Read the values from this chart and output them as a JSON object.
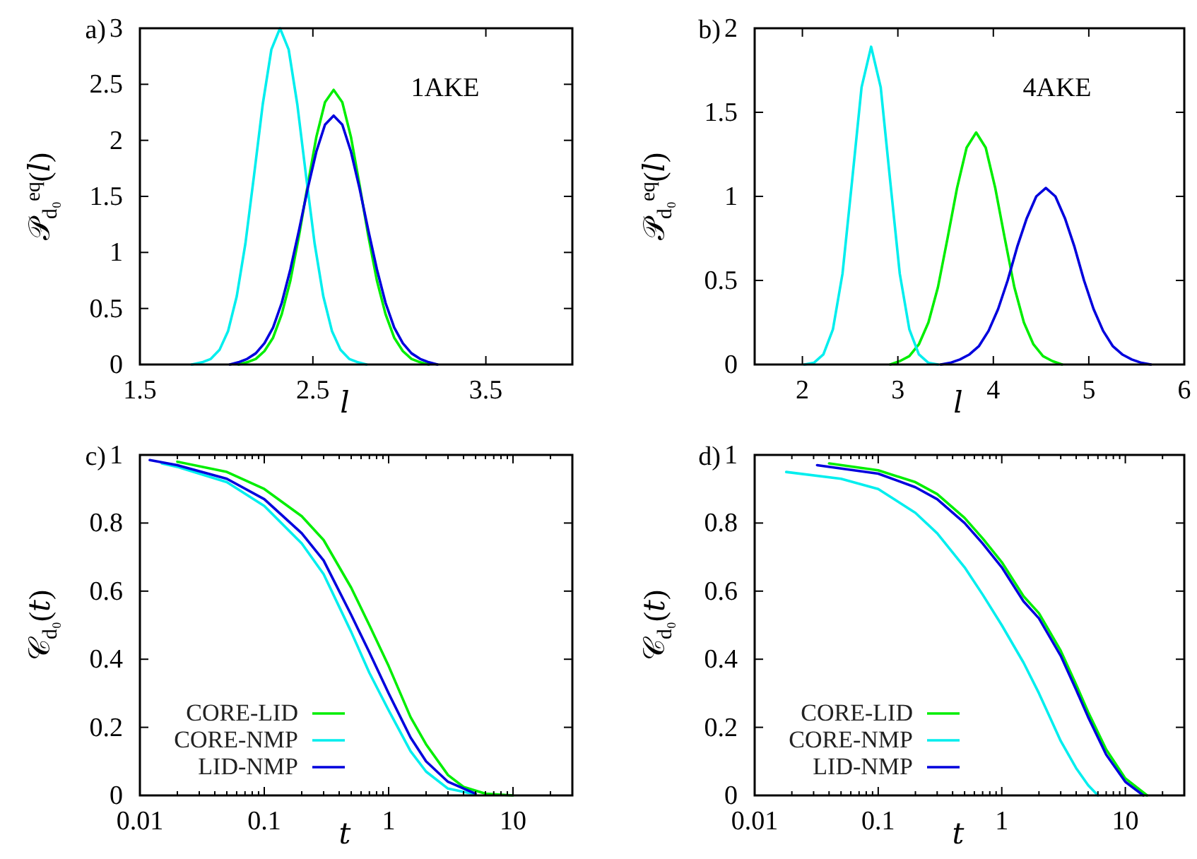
{
  "chart_data": [
    {
      "type": "line",
      "title": "a)",
      "xlabel": "𝑙",
      "ylabel": "𝒫$_{d₀}$$^{eq}$(𝑙)",
      "xlim": [
        1.5,
        4
      ],
      "xticks": [
        1.5,
        2.5,
        3.5
      ],
      "ylim": [
        0,
        3
      ],
      "yticks": [
        0,
        0.5,
        1,
        1.5,
        2,
        2.5,
        3
      ],
      "annotations": [
        "1AKE"
      ],
      "series": [
        {
          "color": "#00ee00",
          "x": [
            2.07,
            2.12,
            2.17,
            2.22,
            2.27,
            2.32,
            2.37,
            2.42,
            2.47,
            2.52,
            2.57,
            2.62,
            2.67,
            2.72,
            2.77,
            2.82,
            2.87,
            2.92,
            2.97,
            3.02,
            3.07,
            3.12,
            3.17
          ],
          "values": [
            0,
            0.02,
            0.05,
            0.12,
            0.24,
            0.45,
            0.75,
            1.15,
            1.6,
            2.03,
            2.34,
            2.45,
            2.34,
            2.03,
            1.6,
            1.15,
            0.75,
            0.45,
            0.24,
            0.12,
            0.05,
            0.02,
            0
          ]
        },
        {
          "color": "#00eeee",
          "x": [
            1.8,
            1.86,
            1.91,
            1.96,
            2.01,
            2.06,
            2.11,
            2.16,
            2.21,
            2.26,
            2.31,
            2.36,
            2.41,
            2.46,
            2.51,
            2.56,
            2.61,
            2.66,
            2.71,
            2.76,
            2.81
          ],
          "values": [
            0,
            0.02,
            0.05,
            0.13,
            0.3,
            0.61,
            1.08,
            1.69,
            2.32,
            2.81,
            3,
            2.81,
            2.32,
            1.69,
            1.08,
            0.61,
            0.3,
            0.13,
            0.05,
            0.02,
            0
          ]
        },
        {
          "color": "#0000dd",
          "x": [
            2.02,
            2.07,
            2.12,
            2.17,
            2.22,
            2.27,
            2.32,
            2.37,
            2.42,
            2.47,
            2.52,
            2.57,
            2.62,
            2.67,
            2.72,
            2.77,
            2.82,
            2.87,
            2.92,
            2.97,
            3.02,
            3.07,
            3.12,
            3.17,
            3.22
          ],
          "values": [
            0,
            0.02,
            0.05,
            0.1,
            0.19,
            0.33,
            0.55,
            0.85,
            1.2,
            1.57,
            1.9,
            2.14,
            2.22,
            2.14,
            1.9,
            1.57,
            1.2,
            0.85,
            0.55,
            0.33,
            0.19,
            0.1,
            0.05,
            0.02,
            0
          ]
        }
      ]
    },
    {
      "type": "line",
      "title": "b)",
      "xlabel": "𝑙",
      "ylabel": "𝒫$_{d₀}$$^{eq}$(𝑙)",
      "xlim": [
        1.5,
        6
      ],
      "xticks": [
        2,
        3,
        4,
        5,
        6
      ],
      "ylim": [
        0,
        2
      ],
      "yticks": [
        0,
        0.5,
        1,
        1.5,
        2
      ],
      "annotations": [
        "4AKE"
      ],
      "series": [
        {
          "color": "#00ee00",
          "x": [
            2.92,
            3.02,
            3.12,
            3.22,
            3.32,
            3.42,
            3.52,
            3.62,
            3.72,
            3.82,
            3.92,
            4.02,
            4.12,
            4.22,
            4.32,
            4.42,
            4.52,
            4.62,
            4.72
          ],
          "values": [
            0,
            0.02,
            0.05,
            0.12,
            0.25,
            0.46,
            0.75,
            1.05,
            1.29,
            1.38,
            1.29,
            1.05,
            0.75,
            0.46,
            0.25,
            0.12,
            0.05,
            0.02,
            0
          ]
        },
        {
          "color": "#00eeee",
          "x": [
            2.02,
            2.12,
            2.22,
            2.32,
            2.42,
            2.52,
            2.62,
            2.72,
            2.82,
            2.92,
            3.02,
            3.12,
            3.22,
            3.32,
            3.42
          ],
          "values": [
            0,
            0.01,
            0.06,
            0.21,
            0.54,
            1.09,
            1.65,
            1.89,
            1.65,
            1.09,
            0.54,
            0.21,
            0.06,
            0.01,
            0
          ]
        },
        {
          "color": "#0000dd",
          "x": [
            3.45,
            3.55,
            3.65,
            3.75,
            3.85,
            3.95,
            4.05,
            4.15,
            4.25,
            4.35,
            4.45,
            4.55,
            4.65,
            4.75,
            4.85,
            4.95,
            5.05,
            5.15,
            5.25,
            5.35,
            5.45,
            5.55,
            5.65
          ],
          "values": [
            0,
            0.01,
            0.03,
            0.06,
            0.11,
            0.2,
            0.33,
            0.5,
            0.7,
            0.87,
            1,
            1.05,
            1,
            0.87,
            0.7,
            0.5,
            0.33,
            0.2,
            0.11,
            0.06,
            0.03,
            0.01,
            0
          ]
        }
      ]
    },
    {
      "type": "line",
      "title": "c)",
      "xlabel": "𝑡",
      "ylabel": "𝒞$_{d₀}$(𝑡)",
      "log": "x",
      "xlim": [
        0.01,
        30
      ],
      "xticks": [
        0.01,
        0.1,
        1,
        10
      ],
      "ylim": [
        0,
        1
      ],
      "yticks": [
        0,
        0.2,
        0.4,
        0.6,
        0.8,
        1
      ],
      "legend": "bottom left",
      "series": [
        {
          "name": "CORE-LID",
          "color": "#00ee00",
          "x": [
            0.02,
            0.05,
            0.1,
            0.2,
            0.3,
            0.5,
            0.7,
            1,
            1.5,
            2,
            3,
            4,
            6,
            10
          ],
          "values": [
            0.98,
            0.95,
            0.9,
            0.82,
            0.75,
            0.61,
            0.5,
            0.38,
            0.23,
            0.15,
            0.06,
            0.025,
            0.005,
            0
          ]
        },
        {
          "name": "CORE-NMP",
          "color": "#00eeee",
          "x": [
            0.015,
            0.02,
            0.05,
            0.1,
            0.2,
            0.3,
            0.5,
            0.7,
            1,
            1.5,
            2,
            3,
            5
          ],
          "values": [
            0.975,
            0.965,
            0.92,
            0.85,
            0.74,
            0.65,
            0.48,
            0.36,
            0.25,
            0.13,
            0.07,
            0.02,
            0.003
          ]
        },
        {
          "name": "LID-NMP",
          "color": "#0000dd",
          "x": [
            0.012,
            0.02,
            0.05,
            0.1,
            0.2,
            0.3,
            0.5,
            0.7,
            1,
            1.5,
            2,
            3,
            5
          ],
          "values": [
            0.985,
            0.97,
            0.93,
            0.87,
            0.77,
            0.69,
            0.53,
            0.42,
            0.3,
            0.17,
            0.1,
            0.04,
            0.005
          ]
        }
      ]
    },
    {
      "type": "line",
      "title": "d)",
      "xlabel": "𝑡",
      "ylabel": "𝒞$_{d₀}$(𝑡)",
      "log": "x",
      "xlim": [
        0.01,
        30
      ],
      "xticks": [
        0.01,
        0.1,
        1,
        10
      ],
      "ylim": [
        0,
        1
      ],
      "yticks": [
        0,
        0.2,
        0.4,
        0.6,
        0.8,
        1
      ],
      "legend": "bottom left",
      "series": [
        {
          "name": "CORE-LID",
          "color": "#00ee00",
          "x": [
            0.04,
            0.1,
            0.2,
            0.3,
            0.5,
            0.7,
            1,
            1.5,
            2,
            3,
            4,
            5,
            7,
            10,
            15
          ],
          "values": [
            0.975,
            0.955,
            0.92,
            0.885,
            0.815,
            0.755,
            0.685,
            0.585,
            0.535,
            0.425,
            0.325,
            0.245,
            0.135,
            0.05,
            0
          ]
        },
        {
          "name": "CORE-NMP",
          "color": "#00eeee",
          "x": [
            0.018,
            0.05,
            0.1,
            0.2,
            0.3,
            0.5,
            0.7,
            1,
            1.5,
            2,
            3,
            4,
            5,
            6
          ],
          "values": [
            0.95,
            0.93,
            0.9,
            0.83,
            0.77,
            0.67,
            0.59,
            0.5,
            0.39,
            0.3,
            0.16,
            0.08,
            0.03,
            0
          ]
        },
        {
          "name": "LID-NMP",
          "color": "#0000dd",
          "x": [
            0.032,
            0.1,
            0.2,
            0.3,
            0.5,
            0.7,
            1,
            1.5,
            2,
            3,
            4,
            5,
            7,
            10,
            14
          ],
          "values": [
            0.97,
            0.945,
            0.905,
            0.87,
            0.8,
            0.74,
            0.67,
            0.57,
            0.52,
            0.41,
            0.31,
            0.23,
            0.12,
            0.04,
            0
          ]
        }
      ]
    }
  ]
}
